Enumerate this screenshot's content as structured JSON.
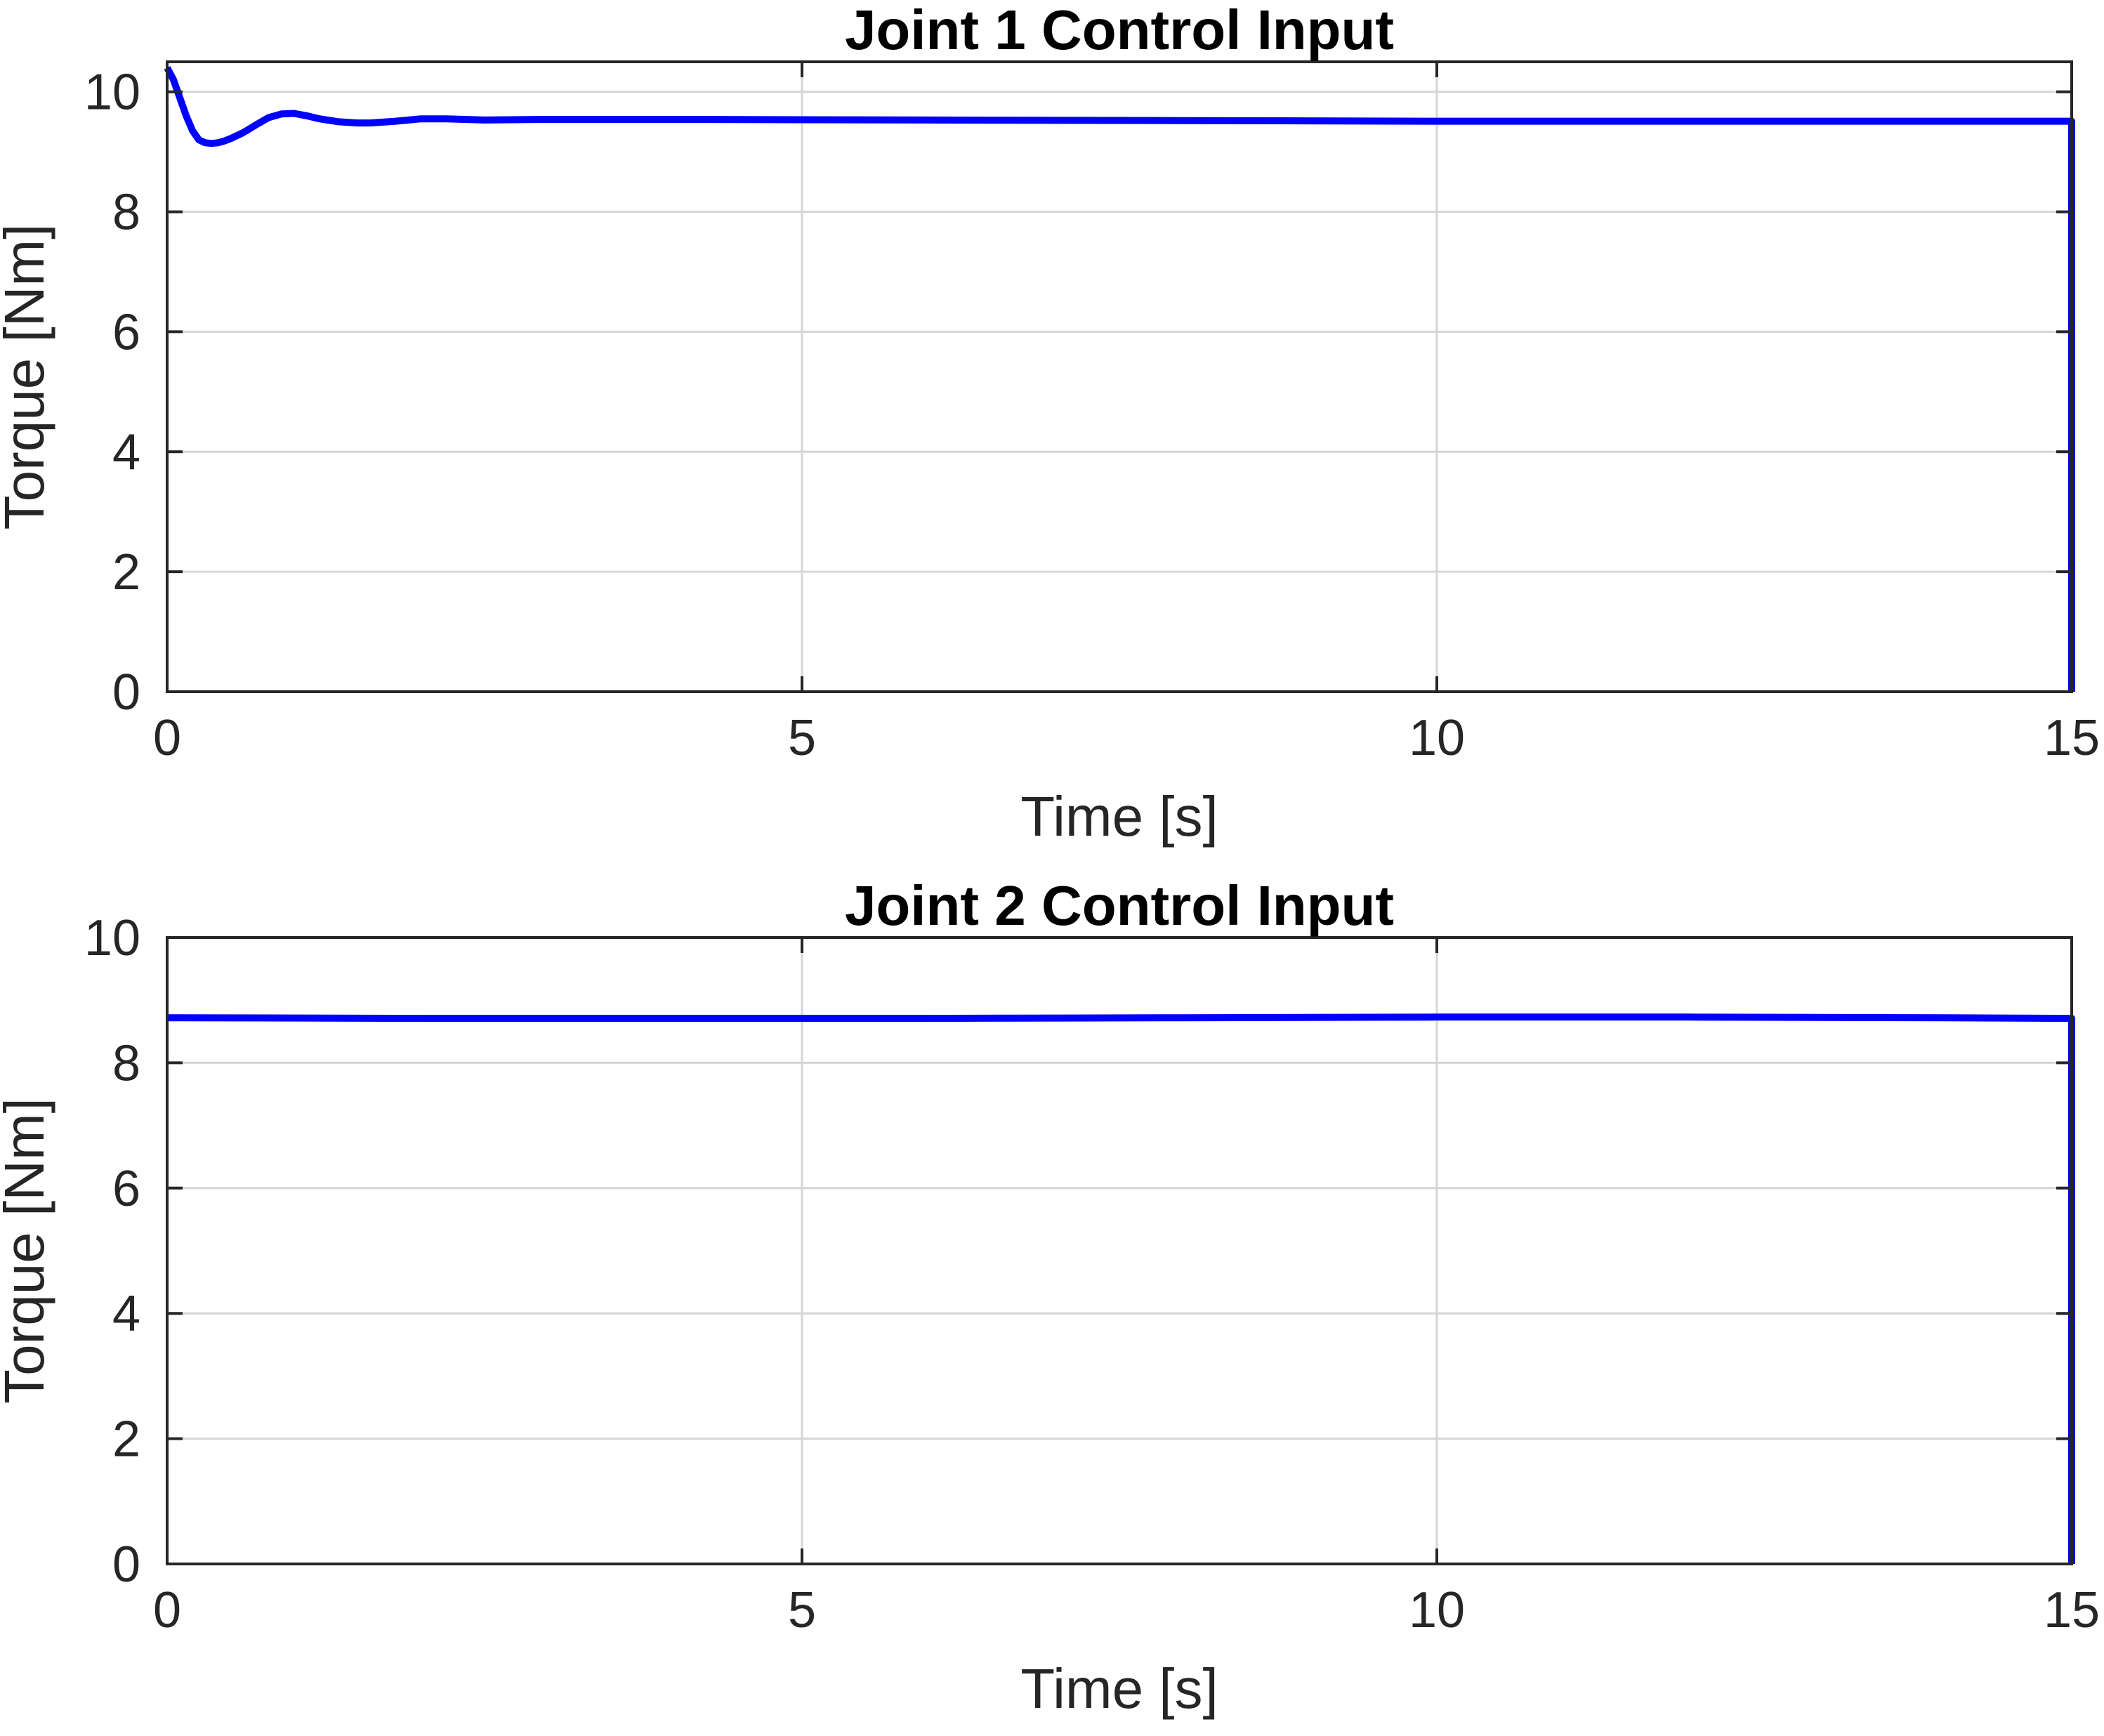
{
  "colors": {
    "series": "#0000ff",
    "axes": "#262626",
    "grid": "#d6d6d6",
    "background": "#ffffff"
  },
  "chart_data": [
    {
      "type": "line",
      "title": "Joint 1 Control Input",
      "xlabel": "Time [s]",
      "ylabel": "Torque [Nm]",
      "xlim": [
        0,
        15
      ],
      "ylim": [
        0,
        10.5
      ],
      "xticks": [
        "0",
        "5",
        "10",
        "15"
      ],
      "yticks": [
        "0",
        "2",
        "4",
        "6",
        "8",
        "10"
      ],
      "grid": true,
      "series": [
        {
          "x": [
            0,
            0.05,
            0.1,
            0.15,
            0.2,
            0.25,
            0.3,
            0.35,
            0.4,
            0.45,
            0.5,
            0.6,
            0.7,
            0.8,
            0.9,
            1.0,
            1.1,
            1.2,
            1.35,
            1.5,
            1.6,
            1.8,
            2.0,
            2.2,
            2.5,
            3.0,
            4.0,
            6.0,
            8.0,
            10.0,
            12.0,
            14.0,
            15.0,
            15.0
          ],
          "y": [
            10.4,
            10.2,
            9.9,
            9.6,
            9.35,
            9.2,
            9.15,
            9.14,
            9.15,
            9.18,
            9.22,
            9.32,
            9.45,
            9.57,
            9.63,
            9.64,
            9.6,
            9.55,
            9.5,
            9.48,
            9.48,
            9.51,
            9.55,
            9.55,
            9.53,
            9.54,
            9.54,
            9.53,
            9.52,
            9.51,
            9.51,
            9.51,
            9.51,
            0
          ]
        }
      ]
    },
    {
      "type": "line",
      "title": "Joint 2 Control Input",
      "xlabel": "Time [s]",
      "ylabel": "Torque [Nm]",
      "xlim": [
        0,
        15
      ],
      "ylim": [
        0,
        10
      ],
      "xticks": [
        "0",
        "5",
        "10",
        "15"
      ],
      "yticks": [
        "0",
        "2",
        "4",
        "6",
        "8",
        "10"
      ],
      "grid": true,
      "series": [
        {
          "x": [
            0,
            2,
            4,
            6,
            8,
            10,
            12,
            14,
            15,
            15
          ],
          "y": [
            8.72,
            8.71,
            8.71,
            8.71,
            8.72,
            8.73,
            8.73,
            8.72,
            8.71,
            0
          ]
        }
      ]
    }
  ]
}
